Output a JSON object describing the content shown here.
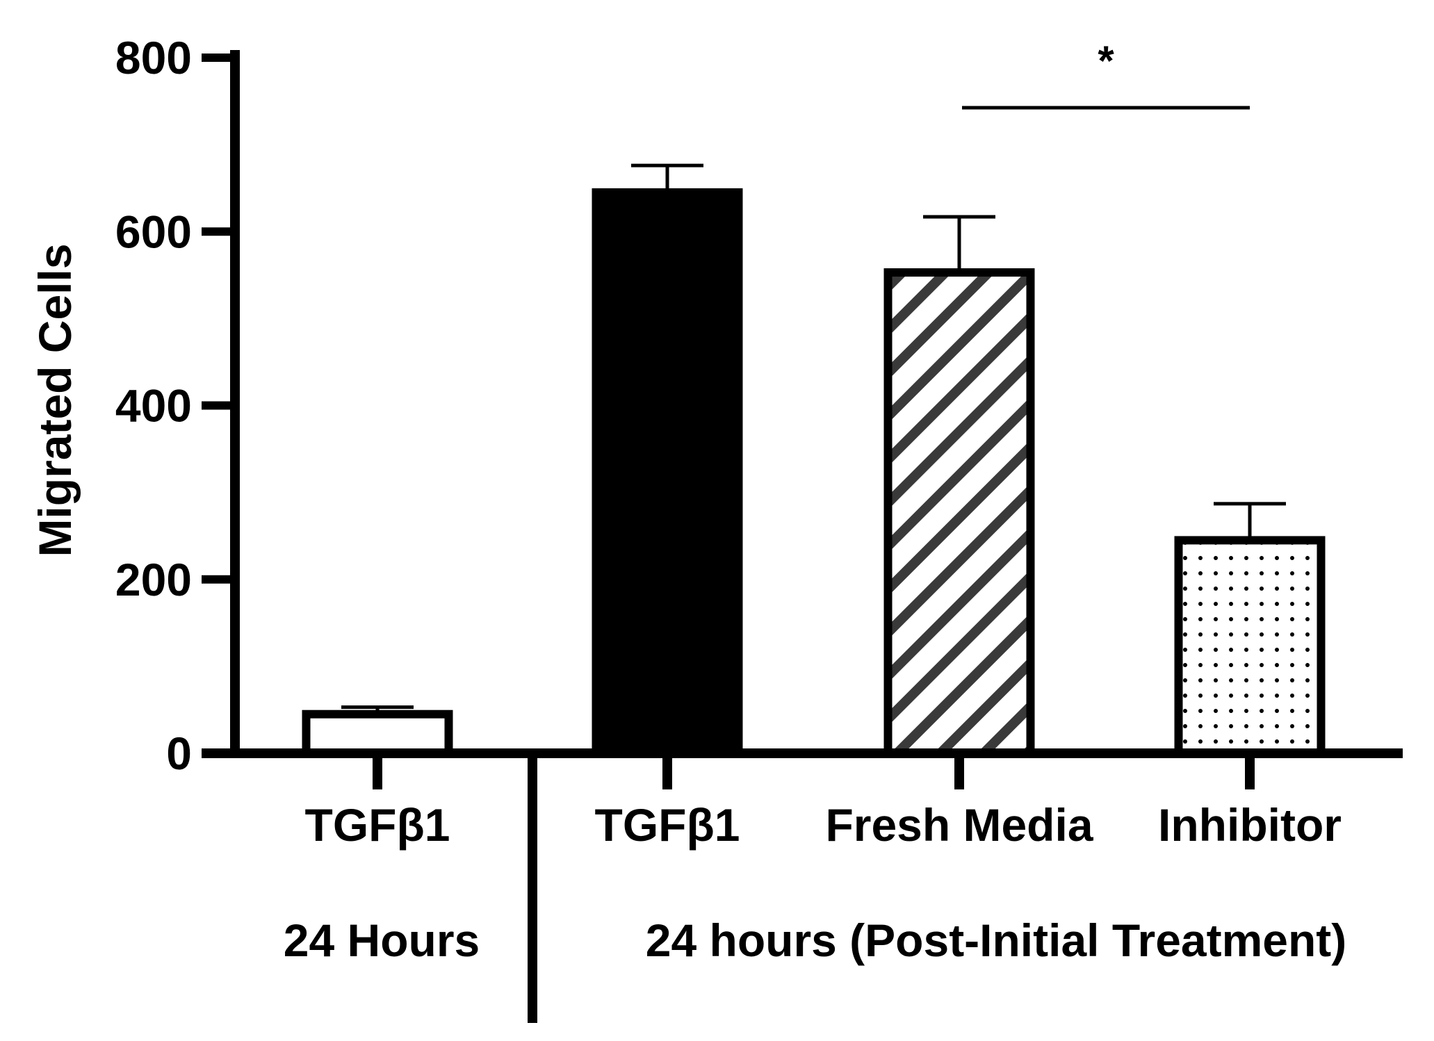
{
  "chart_data": {
    "type": "bar",
    "title": "",
    "xlabel": "",
    "ylabel": "Migrated Cells",
    "ylim": [
      0,
      800
    ],
    "yticks": [
      0,
      200,
      400,
      600,
      800
    ],
    "grid": false,
    "legend": "none",
    "categories": [
      "TGFβ1",
      "TGFβ1",
      "Fresh Media",
      "Inhibitor"
    ],
    "values": [
      45,
      645,
      553,
      245
    ],
    "error_upper": [
      53,
      676,
      617,
      287
    ],
    "bar_styles": [
      {
        "fill": "white",
        "pattern": "none"
      },
      {
        "fill": "black",
        "pattern": "none"
      },
      {
        "fill": "white",
        "pattern": "diagonal-stripes"
      },
      {
        "fill": "white",
        "pattern": "dots"
      }
    ],
    "groups": [
      {
        "label": "24 Hours",
        "categories": [
          0
        ]
      },
      {
        "label": "24 hours (Post-Initial Treatment)",
        "categories": [
          1,
          2,
          3
        ]
      }
    ],
    "annotations": [
      {
        "text": "*",
        "between": [
          2,
          3
        ]
      }
    ],
    "colors": {
      "ink": "#000000",
      "stripe": "#3a3a3a",
      "background": "#ffffff"
    }
  }
}
